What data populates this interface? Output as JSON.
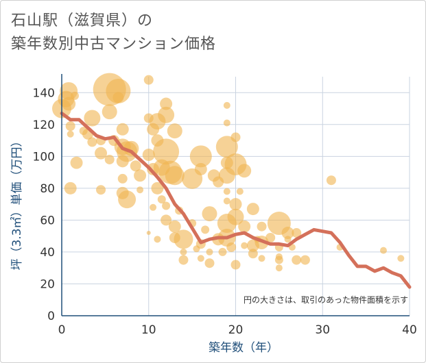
{
  "title_line1": "石山駅（滋賀県）の",
  "title_line2": "築年数別中古マンション価格",
  "chart_data": {
    "type": "scatter",
    "xlabel": "築年数（年）",
    "ylabel": "坪（3.3㎡）単価（万円）",
    "xlim": [
      0,
      40
    ],
    "ylim": [
      0,
      150
    ],
    "x_ticks": [
      0,
      10,
      20,
      30,
      40
    ],
    "y_ticks": [
      0,
      20,
      40,
      60,
      80,
      100,
      120,
      140
    ],
    "grid": true,
    "note": "円の大きさは、取引のあった物件面積を示す",
    "colors": {
      "bubble": "#f0b450",
      "trend": "#d4705a",
      "grid": "#c9d3e0",
      "axis": "#1f4e79"
    },
    "bubbles": [
      {
        "x": 0,
        "y": 130,
        "s": 14
      },
      {
        "x": 0.5,
        "y": 136,
        "s": 12
      },
      {
        "x": 0.8,
        "y": 141,
        "s": 13
      },
      {
        "x": 0.8,
        "y": 133,
        "s": 10
      },
      {
        "x": 1,
        "y": 119,
        "s": 7
      },
      {
        "x": 1,
        "y": 114,
        "s": 5
      },
      {
        "x": 1,
        "y": 80,
        "s": 9
      },
      {
        "x": 1.5,
        "y": 138,
        "s": 6
      },
      {
        "x": 1.7,
        "y": 96,
        "s": 9
      },
      {
        "x": 2.5,
        "y": 116,
        "s": 6
      },
      {
        "x": 3,
        "y": 114,
        "s": 8
      },
      {
        "x": 3.5,
        "y": 124,
        "s": 12
      },
      {
        "x": 3.5,
        "y": 109,
        "s": 7
      },
      {
        "x": 4.5,
        "y": 110,
        "s": 7
      },
      {
        "x": 4.5,
        "y": 102,
        "s": 9
      },
      {
        "x": 4.5,
        "y": 79,
        "s": 7
      },
      {
        "x": 5.5,
        "y": 128,
        "s": 11
      },
      {
        "x": 5.5,
        "y": 98,
        "s": 7
      },
      {
        "x": 6,
        "y": 110,
        "s": 8
      },
      {
        "x": 5.5,
        "y": 142,
        "s": 24
      },
      {
        "x": 6.5,
        "y": 141,
        "s": 18
      },
      {
        "x": 6.5,
        "y": 137,
        "s": 8
      },
      {
        "x": 7,
        "y": 117,
        "s": 9
      },
      {
        "x": 7,
        "y": 106,
        "s": 12
      },
      {
        "x": 7,
        "y": 97,
        "s": 9
      },
      {
        "x": 7,
        "y": 86,
        "s": 7
      },
      {
        "x": 7,
        "y": 77,
        "s": 9
      },
      {
        "x": 7.5,
        "y": 103,
        "s": 15
      },
      {
        "x": 7.5,
        "y": 73,
        "s": 13
      },
      {
        "x": 8,
        "y": 105,
        "s": 11
      },
      {
        "x": 8.5,
        "y": 94,
        "s": 8
      },
      {
        "x": 9,
        "y": 88,
        "s": 9
      },
      {
        "x": 9,
        "y": 79,
        "s": 5
      },
      {
        "x": 10,
        "y": 148,
        "s": 7
      },
      {
        "x": 10,
        "y": 124,
        "s": 7
      },
      {
        "x": 10,
        "y": 101,
        "s": 9
      },
      {
        "x": 10,
        "y": 52,
        "s": 3
      },
      {
        "x": 10.5,
        "y": 117,
        "s": 9
      },
      {
        "x": 10.5,
        "y": 92,
        "s": 9
      },
      {
        "x": 10.5,
        "y": 68,
        "s": 5
      },
      {
        "x": 11,
        "y": 122,
        "s": 12
      },
      {
        "x": 11,
        "y": 110,
        "s": 9
      },
      {
        "x": 11,
        "y": 80,
        "s": 9
      },
      {
        "x": 11,
        "y": 48,
        "s": 5
      },
      {
        "x": 11.5,
        "y": 93,
        "s": 12
      },
      {
        "x": 11.5,
        "y": 73,
        "s": 6
      },
      {
        "x": 12,
        "y": 133,
        "s": 9
      },
      {
        "x": 12,
        "y": 126,
        "s": 12
      },
      {
        "x": 12,
        "y": 103,
        "s": 19
      },
      {
        "x": 12,
        "y": 60,
        "s": 8
      },
      {
        "x": 12,
        "y": 69,
        "s": 6
      },
      {
        "x": 12.5,
        "y": 90,
        "s": 17
      },
      {
        "x": 13,
        "y": 116,
        "s": 11
      },
      {
        "x": 13,
        "y": 88,
        "s": 14
      },
      {
        "x": 13,
        "y": 56,
        "s": 9
      },
      {
        "x": 13,
        "y": 49,
        "s": 8
      },
      {
        "x": 13.5,
        "y": 66,
        "s": 6
      },
      {
        "x": 14,
        "y": 48,
        "s": 14
      },
      {
        "x": 14,
        "y": 35,
        "s": 7
      },
      {
        "x": 14,
        "y": 40,
        "s": 5
      },
      {
        "x": 15,
        "y": 86,
        "s": 15
      },
      {
        "x": 15,
        "y": 58,
        "s": 6
      },
      {
        "x": 15.5,
        "y": 42,
        "s": 5
      },
      {
        "x": 16,
        "y": 100,
        "s": 16
      },
      {
        "x": 16,
        "y": 92,
        "s": 9
      },
      {
        "x": 16,
        "y": 45,
        "s": 7
      },
      {
        "x": 16,
        "y": 36,
        "s": 5
      },
      {
        "x": 16.5,
        "y": 54,
        "s": 6
      },
      {
        "x": 17,
        "y": 64,
        "s": 11
      },
      {
        "x": 17,
        "y": 40,
        "s": 5
      },
      {
        "x": 17,
        "y": 33,
        "s": 7
      },
      {
        "x": 17.5,
        "y": 88,
        "s": 9
      },
      {
        "x": 18,
        "y": 84,
        "s": 8
      },
      {
        "x": 18,
        "y": 48,
        "s": 9
      },
      {
        "x": 18.5,
        "y": 40,
        "s": 6
      },
      {
        "x": 19,
        "y": 132,
        "s": 5
      },
      {
        "x": 19,
        "y": 121,
        "s": 5
      },
      {
        "x": 19,
        "y": 106,
        "s": 16
      },
      {
        "x": 19,
        "y": 96,
        "s": 9
      },
      {
        "x": 19,
        "y": 88,
        "s": 12
      },
      {
        "x": 19,
        "y": 78,
        "s": 5
      },
      {
        "x": 19,
        "y": 72,
        "s": 5
      },
      {
        "x": 19,
        "y": 58,
        "s": 14
      },
      {
        "x": 19,
        "y": 49,
        "s": 13
      },
      {
        "x": 19.5,
        "y": 43,
        "s": 7
      },
      {
        "x": 20,
        "y": 112,
        "s": 7
      },
      {
        "x": 20,
        "y": 95,
        "s": 16
      },
      {
        "x": 20,
        "y": 70,
        "s": 9
      },
      {
        "x": 20,
        "y": 62,
        "s": 12
      },
      {
        "x": 20,
        "y": 32,
        "s": 7
      },
      {
        "x": 20.5,
        "y": 78,
        "s": 5
      },
      {
        "x": 21,
        "y": 91,
        "s": 10
      },
      {
        "x": 21,
        "y": 56,
        "s": 9
      },
      {
        "x": 21,
        "y": 44,
        "s": 5
      },
      {
        "x": 22,
        "y": 67,
        "s": 9
      },
      {
        "x": 22,
        "y": 44,
        "s": 9
      },
      {
        "x": 22,
        "y": 39,
        "s": 7
      },
      {
        "x": 22.5,
        "y": 48,
        "s": 5
      },
      {
        "x": 23,
        "y": 56,
        "s": 7
      },
      {
        "x": 23,
        "y": 46,
        "s": 10
      },
      {
        "x": 23,
        "y": 36,
        "s": 5
      },
      {
        "x": 24,
        "y": 49,
        "s": 7
      },
      {
        "x": 25,
        "y": 58,
        "s": 17
      },
      {
        "x": 25,
        "y": 43,
        "s": 6
      },
      {
        "x": 25,
        "y": 37,
        "s": 5
      },
      {
        "x": 25,
        "y": 35,
        "s": 6
      },
      {
        "x": 25,
        "y": 30,
        "s": 5
      },
      {
        "x": 26,
        "y": 52,
        "s": 9
      },
      {
        "x": 26,
        "y": 48,
        "s": 5
      },
      {
        "x": 26.5,
        "y": 43,
        "s": 5
      },
      {
        "x": 27,
        "y": 52,
        "s": 7
      },
      {
        "x": 27,
        "y": 35,
        "s": 7
      },
      {
        "x": 28,
        "y": 35,
        "s": 7
      },
      {
        "x": 31,
        "y": 85,
        "s": 7
      },
      {
        "x": 32,
        "y": 43,
        "s": 5
      },
      {
        "x": 37,
        "y": 41,
        "s": 5
      },
      {
        "x": 39,
        "y": 36,
        "s": 5
      }
    ],
    "trend": [
      [
        0,
        127
      ],
      [
        1,
        123
      ],
      [
        2,
        123
      ],
      [
        3,
        118
      ],
      [
        4,
        113
      ],
      [
        5,
        111
      ],
      [
        6,
        112
      ],
      [
        7,
        105
      ],
      [
        8,
        103
      ],
      [
        9,
        98
      ],
      [
        10,
        93
      ],
      [
        11,
        87
      ],
      [
        12,
        80
      ],
      [
        13,
        70
      ],
      [
        14,
        64
      ],
      [
        15,
        55
      ],
      [
        16,
        46
      ],
      [
        17,
        48
      ],
      [
        18,
        49
      ],
      [
        19,
        49
      ],
      [
        20,
        51
      ],
      [
        21,
        52
      ],
      [
        22,
        49
      ],
      [
        23,
        47
      ],
      [
        24,
        45
      ],
      [
        25,
        45
      ],
      [
        26,
        44
      ],
      [
        27,
        48
      ],
      [
        28,
        51
      ],
      [
        29,
        54
      ],
      [
        30,
        53
      ],
      [
        31,
        52
      ],
      [
        32,
        46
      ],
      [
        33,
        38
      ],
      [
        34,
        31
      ],
      [
        35,
        31
      ],
      [
        36,
        28
      ],
      [
        37,
        30
      ],
      [
        38,
        27
      ],
      [
        39,
        25
      ],
      [
        40,
        18
      ]
    ]
  }
}
